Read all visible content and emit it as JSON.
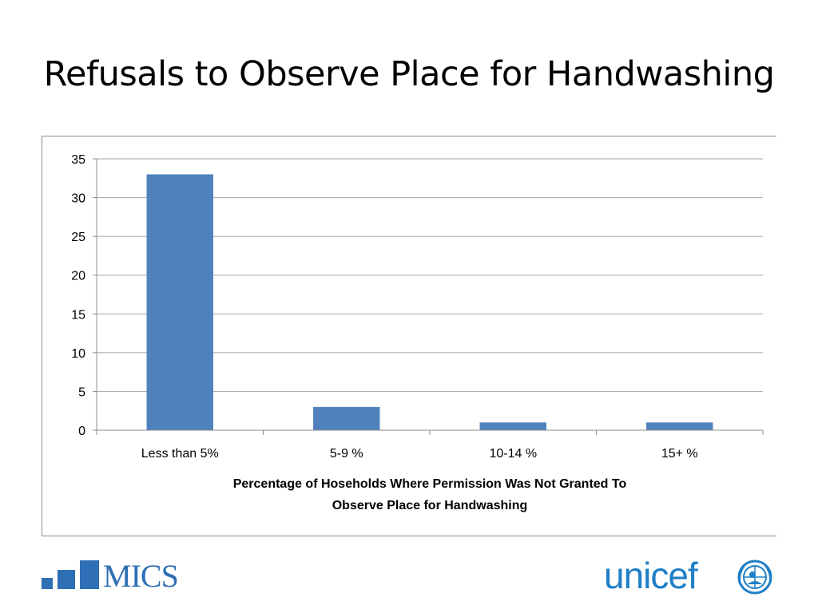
{
  "slide": {
    "title": "Refusals to Observe Place for Handwashing"
  },
  "chart_data": {
    "type": "bar",
    "categories": [
      "Less than 5%",
      "5-9 %",
      "10-14 %",
      "15+ %"
    ],
    "values": [
      33,
      3,
      1,
      1
    ],
    "title": "",
    "xlabel": "Percentage of Hoseholds Where Permission Was Not Granted To Observe Place for Handwashing",
    "xlabel_lines": [
      "Percentage of Hoseholds Where Permission Was Not Granted To",
      "Observe Place for Handwashing"
    ],
    "ylabel": "",
    "ylim": [
      0,
      35
    ],
    "yticks": [
      "0",
      "5",
      "10",
      "15",
      "20",
      "25",
      "30",
      "35"
    ],
    "grid": true,
    "legend": "none",
    "bar_color": "#4f81bd"
  },
  "logos": {
    "mics": "MICS",
    "mics_color": "#2f6fb5",
    "unicef": "unicef",
    "unicef_color": "#1f7fc6"
  }
}
